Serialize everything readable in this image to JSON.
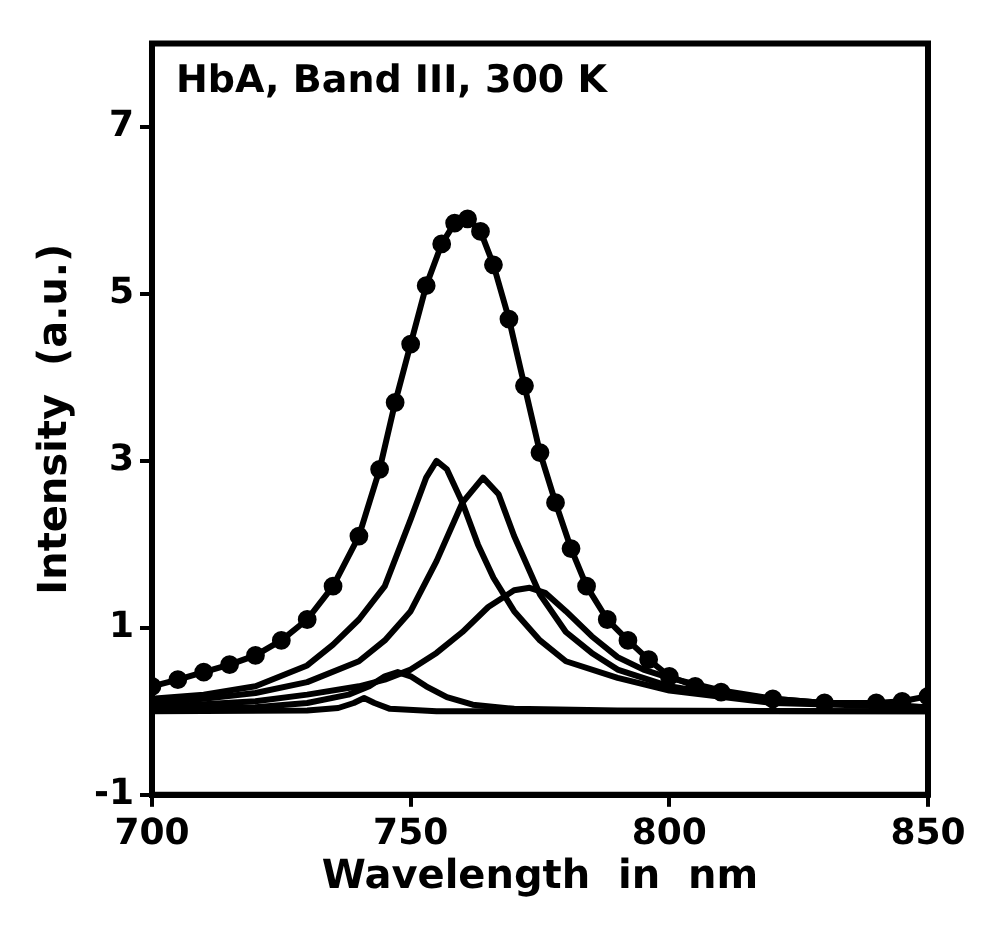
{
  "chart_data": {
    "type": "line",
    "xlabel": "Wavelength  in  nm",
    "ylabel": "Intensity  (a.u.)",
    "annotations": [
      "HbA, Band III, 300 K"
    ],
    "xlim": [
      700,
      850
    ],
    "xticks": [
      700,
      750,
      800,
      850
    ],
    "ylim": [
      -1,
      8
    ],
    "yticks": [
      -1,
      1,
      3,
      5,
      7
    ],
    "grid": false,
    "legend": false,
    "marker": "none",
    "line_style": "solid",
    "series": [
      {
        "color": "#000000",
        "marker": "circle",
        "x": [
          700,
          705,
          710,
          715,
          720,
          725,
          730,
          735,
          740,
          744,
          747,
          750,
          753,
          756,
          758.5,
          761,
          763.5,
          766,
          769,
          772,
          775,
          778,
          781,
          784,
          788,
          792,
          796,
          800,
          805,
          810,
          820,
          830,
          840,
          845,
          850
        ],
        "values": [
          0.3,
          0.38,
          0.47,
          0.56,
          0.67,
          0.85,
          1.1,
          1.5,
          2.1,
          2.9,
          3.7,
          4.4,
          5.1,
          5.6,
          5.85,
          5.9,
          5.75,
          5.35,
          4.7,
          3.9,
          3.1,
          2.5,
          1.95,
          1.5,
          1.1,
          0.85,
          0.62,
          0.42,
          0.3,
          0.23,
          0.15,
          0.1,
          0.1,
          0.12,
          0.18
        ]
      },
      {
        "color": "#000000",
        "x": [
          700,
          710,
          720,
          730,
          735,
          740,
          745,
          750,
          753,
          755,
          757,
          760,
          763,
          766,
          770,
          775,
          780,
          790,
          800,
          820,
          850
        ],
        "values": [
          0.15,
          0.2,
          0.3,
          0.55,
          0.8,
          1.1,
          1.5,
          2.3,
          2.8,
          3.0,
          2.9,
          2.5,
          2.0,
          1.6,
          1.2,
          0.85,
          0.6,
          0.4,
          0.25,
          0.1,
          0.05
        ]
      },
      {
        "color": "#000000",
        "x": [
          700,
          710,
          720,
          730,
          740,
          745,
          750,
          755,
          760,
          764,
          767,
          770,
          775,
          780,
          785,
          790,
          800,
          810,
          820,
          850
        ],
        "values": [
          0.1,
          0.15,
          0.22,
          0.35,
          0.6,
          0.85,
          1.2,
          1.8,
          2.5,
          2.8,
          2.6,
          2.1,
          1.4,
          0.95,
          0.7,
          0.5,
          0.3,
          0.2,
          0.12,
          0.05
        ]
      },
      {
        "color": "#000000",
        "x": [
          700,
          720,
          730,
          740,
          745,
          750,
          755,
          760,
          765,
          770,
          773,
          776,
          780,
          785,
          790,
          795,
          800,
          810,
          820,
          830,
          850
        ],
        "values": [
          0.05,
          0.12,
          0.2,
          0.3,
          0.38,
          0.5,
          0.7,
          0.95,
          1.25,
          1.45,
          1.48,
          1.42,
          1.2,
          0.9,
          0.65,
          0.5,
          0.4,
          0.25,
          0.15,
          0.1,
          0.05
        ]
      },
      {
        "color": "#000000",
        "x": [
          700,
          720,
          730,
          738,
          742,
          745,
          747.5,
          750,
          753,
          757,
          762,
          770,
          790,
          850
        ],
        "values": [
          0.02,
          0.05,
          0.1,
          0.2,
          0.3,
          0.42,
          0.47,
          0.42,
          0.3,
          0.17,
          0.08,
          0.03,
          0.01,
          0
        ]
      },
      {
        "color": "#000000",
        "x": [
          700,
          730,
          736,
          739,
          741,
          743,
          746,
          755,
          850
        ],
        "values": [
          0,
          0.01,
          0.04,
          0.1,
          0.16,
          0.1,
          0.03,
          0,
          0
        ]
      }
    ]
  }
}
